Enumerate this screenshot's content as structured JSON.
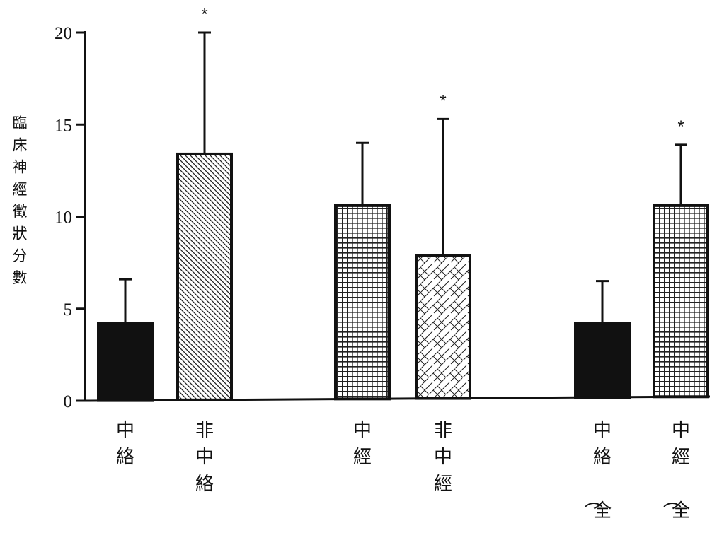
{
  "chart_data": {
    "type": "bar",
    "ylabel": "臨床神經徵狀分數",
    "xlabel": "",
    "ylim": [
      0,
      20
    ],
    "yticks": [
      0,
      5,
      10,
      15,
      20
    ],
    "grid": false,
    "categories": [
      "中絡",
      "非中絡",
      "中經",
      "非中經",
      "中絡（全）",
      "中經（全）"
    ],
    "values": [
      4.2,
      13.4,
      10.6,
      7.9,
      4.2,
      10.6
    ],
    "error_upper": [
      6.6,
      20.0,
      14.0,
      15.3,
      6.5,
      13.9
    ],
    "significance": [
      "",
      "*",
      "",
      "*",
      "",
      "*"
    ],
    "fills": [
      "solid",
      "diagonal",
      "grid",
      "brick",
      "solid",
      "grid"
    ],
    "colors": {
      "ink": "#111111",
      "paper": "#ffffff"
    }
  }
}
